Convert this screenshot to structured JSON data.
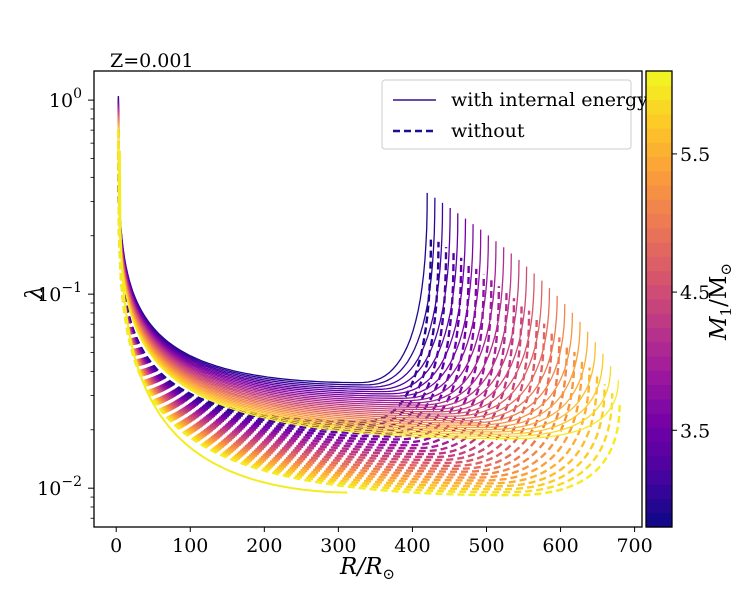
{
  "chart_data": {
    "type": "line",
    "title": "",
    "annotation": "Z=0.001",
    "xlabel": {
      "main": "R/R",
      "sub": "⊙"
    },
    "ylabel": "λ",
    "xlim": [
      -30,
      710
    ],
    "ylim_log10": [
      -2.2,
      0.15
    ],
    "yscale": "log",
    "xticks": [
      0,
      100,
      200,
      300,
      400,
      500,
      600,
      700
    ],
    "xtick_labels": [
      "0",
      "100",
      "200",
      "300",
      "400",
      "500",
      "600",
      "700"
    ],
    "yticks_log10": [
      0,
      -1,
      -2
    ],
    "ytick_labels": [
      {
        "base": "10",
        "exp": "0"
      },
      {
        "base": "10",
        "exp": "−1"
      },
      {
        "base": "10",
        "exp": "−2"
      }
    ],
    "legend": {
      "position": "upper-right",
      "entries": [
        {
          "label": "with internal energy",
          "style": "solid",
          "color": "#3b0f8f"
        },
        {
          "label": "without",
          "style": "dashed",
          "color": "#1a0f8c"
        }
      ]
    },
    "colorbar": {
      "label": {
        "main": "M",
        "sub1": "1",
        "slash": "/M",
        "sub2": "⊙"
      },
      "range": [
        2.8,
        6.1
      ],
      "ticks": [
        3.5,
        4.5,
        5.5
      ],
      "tick_labels": [
        "3.5",
        "4.5",
        "5.5"
      ],
      "colormap": "plasma"
    },
    "series_summary": {
      "mass_range": [
        2.9,
        6.0
      ],
      "n_tracks": 26,
      "solid_end_R": [
        420,
        678
      ],
      "dashed_end_R": [
        425,
        680
      ],
      "min_lambda_solid": [
        0.035,
        0.018
      ],
      "min_lambda_dashed": [
        0.022,
        0.0092
      ]
    },
    "extra_tracks": [
      {
        "name": "yellow-short-solid",
        "style": "solid",
        "end_R": 312,
        "end_lambda": 0.0095
      }
    ]
  },
  "plasma_stops": [
    "#0d0887",
    "#46039f",
    "#7201a8",
    "#9c179e",
    "#bd3786",
    "#d8576b",
    "#ed7953",
    "#fb9f3a",
    "#fdca26",
    "#f0f921"
  ]
}
